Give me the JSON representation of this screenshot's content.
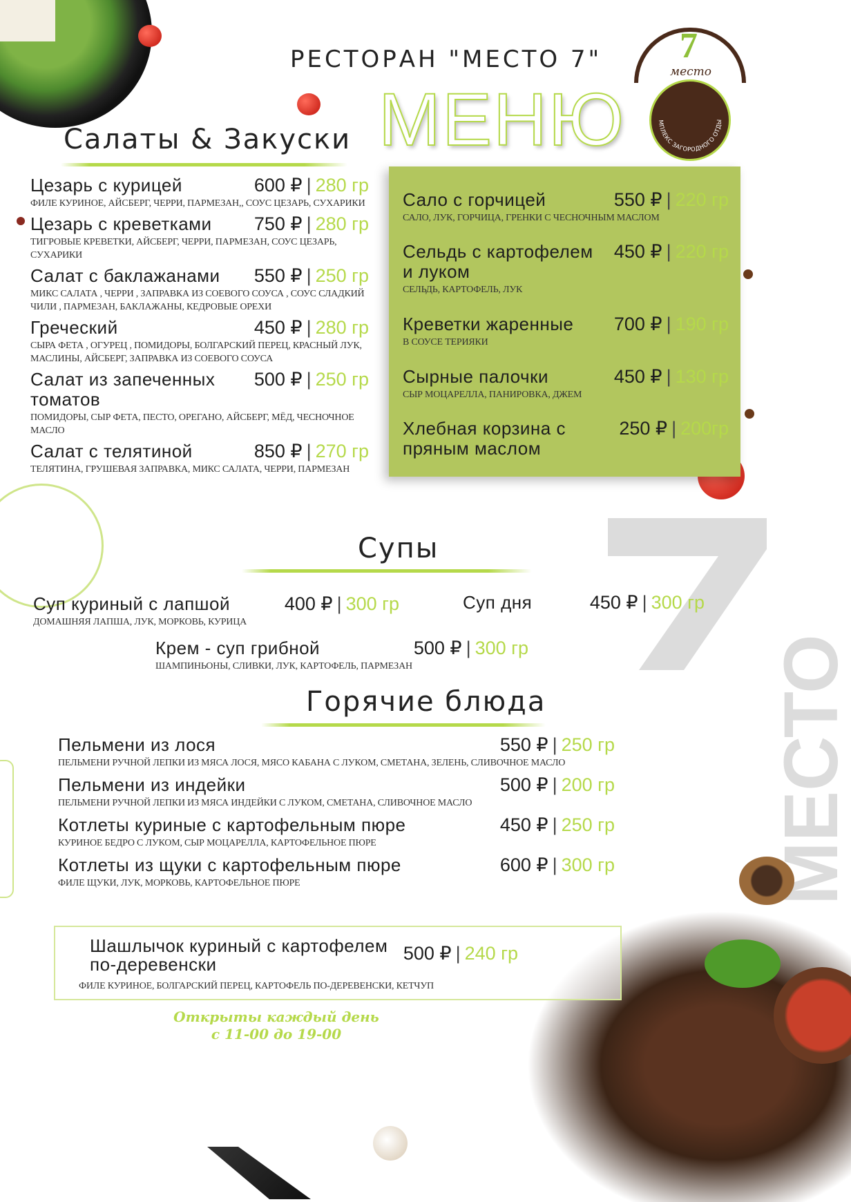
{
  "header": {
    "restaurant": "РЕСТОРАН \"МЕСТО  7\"",
    "menu_title": "МЕНЮ"
  },
  "logo": {
    "text": "место",
    "number": "7",
    "ring_text": "КОМПЛЕКС ЗАГОРОДНОГО ОТДЫХА"
  },
  "watermark": {
    "number": "7",
    "word": "МЕСТО"
  },
  "salads": {
    "title": "Салаты & Закуски",
    "items": [
      {
        "name": "Цезарь с курицей",
        "price": "600 ₽",
        "weight": "280 гр",
        "desc": "филе куриное, айсберг, черри, пармезан,, соус цезарь, сухарики"
      },
      {
        "name": "Цезарь с креветками",
        "price": "750 ₽",
        "weight": "280 гр",
        "desc": "тигровые креветки, айсберг, черри, пармезан, соус цезарь, сухарики"
      },
      {
        "name": "Салат с баклажанами",
        "price": "550 ₽",
        "weight": "250 гр",
        "desc": "микс салата , черри , заправка из соевого соуса , соус сладкий чили , пармезан, баклажаны, кедровые орехи"
      },
      {
        "name": "Греческий",
        "price": "450 ₽",
        "weight": "280 гр",
        "desc": "сыра фета , огурец , помидоры, болгарский перец, красный лук, маслины, айсберг, заправка из соевого соуса"
      },
      {
        "name": "Салат из запеченных томатов",
        "price": "500 ₽",
        "weight": "250 гр",
        "desc": "помидоры, сыр фета, песто, орегано, айсберг, мёд, чесночное масло"
      },
      {
        "name": "Салат с телятиной",
        "price": "850 ₽",
        "weight": "270 гр",
        "desc": "телятина, грушевая заправка, микс салата, черри, пармезан"
      }
    ]
  },
  "snacks": {
    "items": [
      {
        "name": "Сало с горчицей",
        "price": "550 ₽",
        "weight": "220 гр",
        "desc": "сало, лук, горчица, гренки с чесночным маслом"
      },
      {
        "name": "Сельдь с картофелем и луком",
        "price": "450 ₽",
        "weight": "220 гр",
        "desc": "сельдь, картофель, лук"
      },
      {
        "name": "Креветки жаренные",
        "price": "700 ₽",
        "weight": "190 гр",
        "desc": "в соусе терияки"
      },
      {
        "name": "Сырные палочки",
        "price": "450 ₽",
        "weight": "130 гр",
        "desc": "сыр моцарелла, панировка, джем"
      },
      {
        "name": "Хлебная корзина с пряным маслом",
        "price": "250  ₽",
        "weight": "200гр",
        "desc": ""
      }
    ]
  },
  "soups": {
    "title": "Супы",
    "items": [
      {
        "name": "Суп куриный с лапшой",
        "price": "400 ₽",
        "weight": "300 гр",
        "desc": "домашняя лапша, лук, морковь, курица"
      },
      {
        "name": "Суп дня",
        "price": "450 ₽",
        "weight": "300 гр",
        "desc": ""
      },
      {
        "name": "Крем - суп грибной",
        "price": "500 ₽",
        "weight": "300 гр",
        "desc": "шампиньоны, сливки, лук, картофель, пармезан"
      }
    ]
  },
  "hot": {
    "title": "Горячие блюда",
    "items": [
      {
        "name": "Пельмени из лося",
        "price": "550 ₽",
        "weight": "250 гр",
        "desc": "пельмени ручной лепки из мяса лося, мясо кабана с луком, сметана, зелень, сливочное масло"
      },
      {
        "name": "Пельмени из индейки",
        "price": "500 ₽",
        "weight": "200 гр",
        "desc": "пельмени ручной лепки из мяса индейки с луком, сметана, сливочное масло"
      },
      {
        "name": "Котлеты куриные с картофельным пюре",
        "price": "450 ₽",
        "weight": "250 гр",
        "desc": "куриное бедро с луком, сыр моцарелла,  картофельное пюре"
      },
      {
        "name": "Котлеты из щуки с картофельным пюре",
        "price": "600 ₽",
        "weight": "300 гр",
        "desc": "филе щуки, лук, морковь,  картофельное пюре"
      }
    ],
    "featured": {
      "name": "Шашлычок куриный с картофелем по-деревенски",
      "price": "500 ₽",
      "weight": "240 гр",
      "desc": "филе куриное, болгарский перец, картофель по-деревенски, кетчуп"
    }
  },
  "footer": {
    "hours_line1": "Открыты каждый день",
    "hours_line2": "с 11-00 до 19-00"
  },
  "colors": {
    "accent": "#b5d94a",
    "box": "#b2c65e",
    "logo_brown": "#4a2a1a",
    "watermark": "#dcdcdc"
  }
}
